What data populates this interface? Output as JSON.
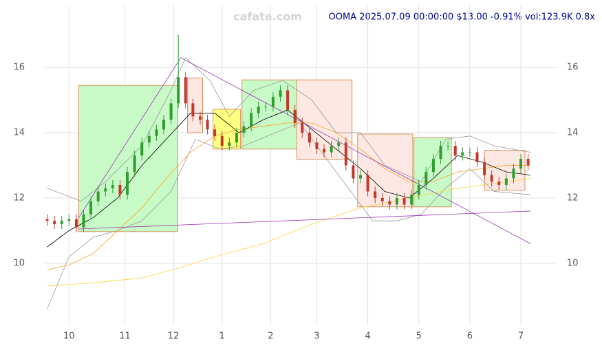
{
  "chart_data": {
    "type": "candlestick",
    "watermark": "cafata.com",
    "title": "OOMA 2025.07.09 00:00:00 $13.00 -0.91% vol:123.9K 0.8x",
    "xlim": [
      -10,
      201
    ],
    "ylim": [
      8.1,
      17.9
    ],
    "xticks": [
      {
        "value": 0,
        "label": "10"
      },
      {
        "value": 23,
        "label": "11"
      },
      {
        "value": 43,
        "label": "12"
      },
      {
        "value": 63,
        "label": "1"
      },
      {
        "value": 83,
        "label": "2"
      },
      {
        "value": 102,
        "label": "3"
      },
      {
        "value": 123,
        "label": "4"
      },
      {
        "value": 144,
        "label": "5"
      },
      {
        "value": 165,
        "label": "6"
      },
      {
        "value": 186,
        "label": "7"
      }
    ],
    "yticks": [
      10,
      12,
      14,
      16
    ],
    "grid": true,
    "up_color": "#2e9e2e",
    "down_color": "#c0392b",
    "candles": {
      "x": [
        -9,
        -6,
        -3,
        0,
        3,
        6,
        9,
        12,
        15,
        18,
        21,
        24,
        27,
        30,
        33,
        36,
        39,
        42,
        45,
        48,
        51,
        54,
        57,
        60,
        63,
        66,
        69,
        72,
        75,
        78,
        81,
        84,
        87,
        90,
        93,
        96,
        99,
        102,
        105,
        108,
        111,
        114,
        117,
        120,
        123,
        126,
        129,
        132,
        135,
        138,
        141,
        144,
        147,
        150,
        153,
        156,
        159,
        162,
        165,
        168,
        171,
        174,
        177,
        180,
        183,
        186,
        189
      ],
      "open": [
        11.35,
        11.3,
        11.2,
        11.3,
        11.35,
        11.1,
        11.5,
        11.9,
        12.2,
        12.3,
        12.4,
        12.1,
        12.8,
        13.3,
        13.7,
        13.9,
        14.1,
        14.4,
        14.9,
        15.7,
        14.9,
        14.5,
        14.4,
        14.1,
        13.9,
        13.6,
        13.7,
        14.0,
        14.2,
        14.6,
        14.8,
        14.8,
        15.1,
        15.3,
        14.7,
        14.3,
        14.0,
        13.7,
        13.5,
        13.4,
        13.6,
        13.7,
        13.0,
        12.6,
        12.7,
        12.2,
        12.0,
        11.9,
        11.8,
        12.0,
        11.8,
        12.1,
        12.4,
        12.8,
        13.2,
        13.6,
        13.6,
        13.3,
        13.4,
        13.4,
        13.1,
        12.7,
        12.5,
        12.4,
        12.6,
        12.9,
        13.2
      ],
      "high": [
        11.5,
        11.45,
        11.45,
        11.5,
        11.5,
        11.65,
        12.05,
        12.35,
        12.45,
        12.55,
        12.55,
        12.95,
        13.45,
        13.85,
        14.05,
        14.25,
        14.55,
        15.05,
        17.0,
        15.85,
        15.05,
        14.65,
        14.55,
        14.25,
        14.05,
        13.85,
        14.15,
        14.35,
        14.75,
        14.95,
        14.95,
        15.25,
        15.45,
        15.45,
        14.85,
        14.45,
        14.15,
        13.85,
        13.65,
        13.75,
        13.85,
        13.85,
        13.15,
        12.85,
        12.85,
        12.35,
        12.15,
        12.05,
        12.15,
        12.15,
        12.25,
        12.55,
        12.95,
        13.35,
        13.75,
        13.75,
        13.75,
        13.55,
        13.55,
        13.55,
        13.25,
        12.85,
        12.65,
        12.75,
        13.05,
        13.35,
        13.35
      ],
      "low": [
        11.15,
        11.05,
        11.05,
        11.15,
        10.95,
        10.95,
        11.35,
        11.75,
        12.05,
        12.15,
        11.95,
        11.95,
        12.65,
        13.15,
        13.55,
        13.75,
        13.95,
        14.25,
        14.75,
        14.75,
        14.35,
        14.25,
        13.95,
        13.75,
        13.45,
        13.45,
        13.55,
        13.85,
        14.05,
        14.45,
        14.65,
        14.65,
        14.95,
        14.55,
        14.15,
        13.85,
        13.55,
        13.35,
        13.25,
        13.25,
        13.45,
        12.85,
        12.45,
        12.45,
        12.05,
        11.85,
        11.75,
        11.65,
        11.65,
        11.65,
        11.65,
        11.95,
        12.25,
        12.65,
        13.05,
        13.45,
        13.15,
        13.15,
        13.25,
        12.95,
        12.55,
        12.35,
        12.25,
        12.25,
        12.45,
        12.75,
        12.85
      ],
      "close": [
        11.3,
        11.2,
        11.3,
        11.35,
        11.1,
        11.5,
        11.9,
        12.2,
        12.3,
        12.4,
        12.1,
        12.8,
        13.3,
        13.7,
        13.9,
        14.1,
        14.4,
        14.9,
        15.7,
        14.9,
        14.5,
        14.4,
        14.1,
        13.9,
        13.6,
        13.7,
        14.0,
        14.2,
        14.6,
        14.8,
        14.8,
        15.1,
        15.3,
        14.7,
        14.3,
        14.0,
        13.7,
        13.5,
        13.4,
        13.6,
        13.7,
        13.0,
        12.6,
        12.7,
        12.2,
        12.0,
        11.9,
        11.8,
        12.0,
        11.8,
        12.1,
        12.4,
        12.8,
        13.2,
        13.6,
        13.6,
        13.3,
        13.4,
        13.4,
        13.1,
        12.7,
        12.5,
        12.4,
        12.6,
        12.9,
        13.2,
        13.0
      ]
    },
    "zones": [
      {
        "x0": 4,
        "x1": 44.8,
        "y0": 10.97,
        "y1": 15.45,
        "color": "#c8fac8"
      },
      {
        "x0": 48.8,
        "x1": 55,
        "y0": 14.0,
        "y1": 15.68,
        "color": "#fde8e4"
      },
      {
        "x0": 59.3,
        "x1": 70.6,
        "y0": 13.5,
        "y1": 14.72,
        "color": "#ffff80"
      },
      {
        "x0": 71.2,
        "x1": 93.8,
        "y0": 13.5,
        "y1": 15.62,
        "color": "#c8fac8"
      },
      {
        "x0": 93.8,
        "x1": 116.5,
        "y0": 13.18,
        "y1": 15.62,
        "color": "#fde8e4"
      },
      {
        "x0": 118.8,
        "x1": 141.5,
        "y0": 11.73,
        "y1": 13.96,
        "color": "#fde8e4"
      },
      {
        "x0": 142,
        "x1": 157.4,
        "y0": 11.73,
        "y1": 13.85,
        "color": "#c8fac8"
      },
      {
        "x0": 171,
        "x1": 187.7,
        "y0": 12.24,
        "y1": 13.46,
        "color": "#fde8e4"
      }
    ],
    "lines": [
      {
        "color": "#999999",
        "x": [
          -9,
          5,
          15,
          30,
          42,
          48,
          58,
          66,
          76,
          88,
          100,
          110,
          120,
          130,
          145,
          155,
          165,
          175,
          190
        ],
        "values": [
          12.3,
          11.9,
          12.5,
          13.6,
          15.3,
          16.3,
          15.6,
          14.5,
          15.3,
          15.6,
          15.0,
          14.0,
          14.0,
          13.0,
          12.5,
          13.8,
          13.9,
          13.6,
          13.4
        ]
      },
      {
        "color": "#999999",
        "x": [
          -9,
          0,
          10,
          20,
          30,
          42,
          52,
          62,
          72,
          85,
          95,
          105,
          115,
          125,
          135,
          145,
          155,
          165,
          175,
          190
        ],
        "values": [
          8.6,
          10.2,
          10.8,
          11.0,
          11.3,
          12.2,
          13.8,
          13.5,
          13.6,
          14.0,
          14.3,
          13.3,
          12.3,
          11.3,
          11.3,
          11.5,
          12.3,
          12.9,
          12.2,
          12.1
        ]
      },
      {
        "color": "#ffd23c",
        "x": [
          -9,
          10,
          30,
          45,
          60,
          80,
          100,
          120,
          140,
          160,
          180,
          190
        ],
        "values": [
          9.3,
          9.4,
          9.55,
          9.85,
          10.2,
          10.6,
          11.2,
          11.7,
          12.0,
          12.3,
          12.5,
          12.6
        ]
      },
      {
        "color": "#f5a623",
        "x": [
          -9,
          0,
          10,
          20,
          30,
          40,
          50,
          60,
          70,
          80,
          90,
          100,
          110,
          120,
          130,
          140,
          150,
          160,
          170,
          180,
          190
        ],
        "values": [
          9.8,
          9.95,
          10.3,
          11.0,
          11.7,
          12.6,
          13.4,
          13.9,
          14.1,
          14.2,
          14.3,
          14.3,
          14.0,
          13.5,
          12.9,
          12.5,
          12.5,
          12.8,
          12.9,
          13.0,
          13.0
        ]
      },
      {
        "color": "#000000",
        "x": [
          -9,
          0,
          10,
          20,
          30,
          40,
          50,
          60,
          70,
          80,
          90,
          100,
          110,
          120,
          130,
          140,
          150,
          160,
          170,
          180,
          190
        ],
        "values": [
          10.5,
          11.0,
          11.4,
          12.0,
          13.0,
          13.8,
          14.6,
          14.6,
          14.0,
          14.4,
          14.7,
          14.1,
          13.5,
          12.9,
          12.2,
          12.0,
          12.6,
          13.3,
          13.1,
          12.8,
          12.7
        ]
      },
      {
        "color": "#9b30b0",
        "x": [
          4,
          46,
          190
        ],
        "values": [
          11.4,
          16.3,
          10.6
        ]
      },
      {
        "color": "#9b30b0",
        "x": [
          4,
          190
        ],
        "values": [
          11.05,
          11.6
        ]
      }
    ]
  }
}
